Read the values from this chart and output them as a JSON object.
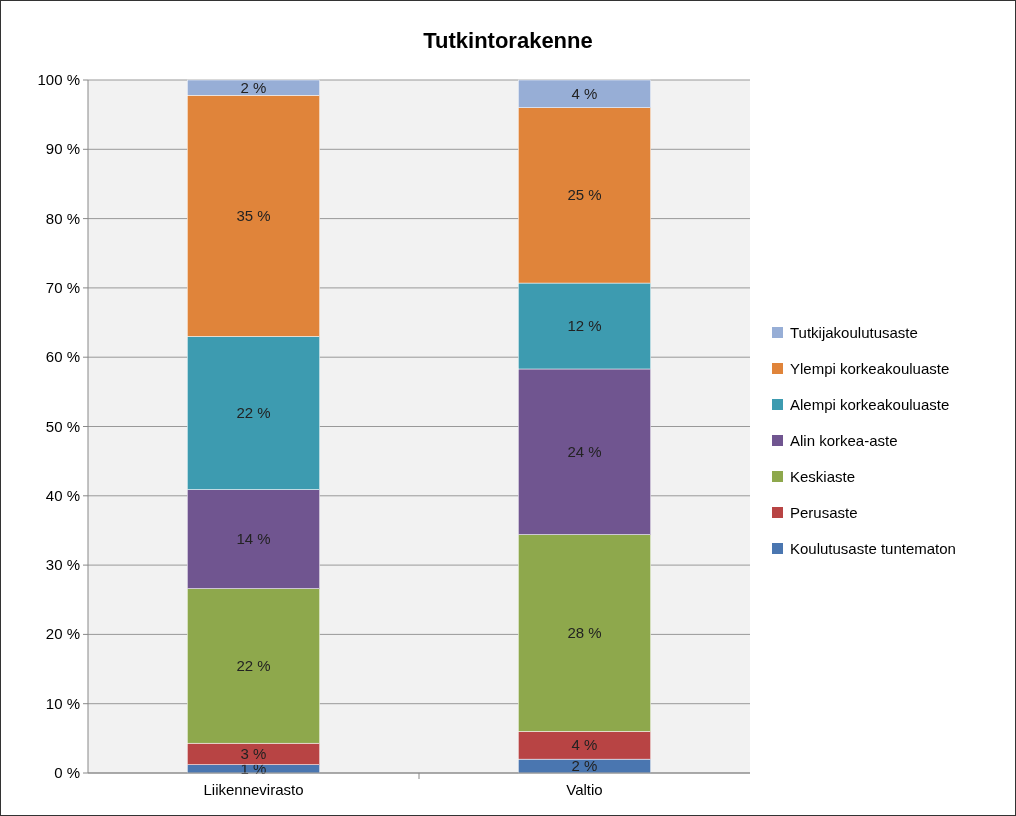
{
  "chart_data": {
    "type": "bar",
    "title": "Tutkintorakenne",
    "stacked": true,
    "categories": [
      "Liikennevirasto",
      "Valtio"
    ],
    "series": [
      {
        "name": "Koulutusaste tuntematon",
        "color": "#4a76b0",
        "values": [
          1.2,
          2
        ],
        "value_labels": [
          "1 %",
          "2 %"
        ]
      },
      {
        "name": "Perusaste",
        "color": "#b84444",
        "values": [
          3.1,
          4
        ],
        "value_labels": [
          "3 %",
          "4 %"
        ]
      },
      {
        "name": "Keskiaste",
        "color": "#8ea84c",
        "values": [
          22.3,
          28.4
        ],
        "value_labels": [
          "22 %",
          "28 %"
        ]
      },
      {
        "name": "Alin korkea-aste",
        "color": "#705590",
        "values": [
          14.3,
          23.9
        ],
        "value_labels": [
          "14 %",
          "24 %"
        ]
      },
      {
        "name": "Alempi korkeakouluaste",
        "color": "#3d9bb0",
        "values": [
          22.1,
          12.4
        ],
        "value_labels": [
          "22 %",
          "12 %"
        ]
      },
      {
        "name": "Ylempi korkeakouluaste",
        "color": "#e0843a",
        "values": [
          34.8,
          25.3
        ],
        "value_labels": [
          "35 %",
          "25 %"
        ]
      },
      {
        "name": "Tutkijakoulutusaste",
        "color": "#97aed6",
        "values": [
          2.2,
          4
        ],
        "value_labels": [
          "2 %",
          "4 %"
        ]
      }
    ],
    "ylim": [
      0,
      100
    ],
    "yticks": [
      {
        "value": 0,
        "label": "0 %"
      },
      {
        "value": 10,
        "label": "10 %"
      },
      {
        "value": 20,
        "label": "20 %"
      },
      {
        "value": 30,
        "label": "30 %"
      },
      {
        "value": 40,
        "label": "40 %"
      },
      {
        "value": 50,
        "label": "50 %"
      },
      {
        "value": 60,
        "label": "60 %"
      },
      {
        "value": 70,
        "label": "70 %"
      },
      {
        "value": 80,
        "label": "80 %"
      },
      {
        "value": 90,
        "label": "90 %"
      },
      {
        "value": 100,
        "label": "100 %"
      }
    ],
    "grid": "y",
    "legend": "right"
  }
}
